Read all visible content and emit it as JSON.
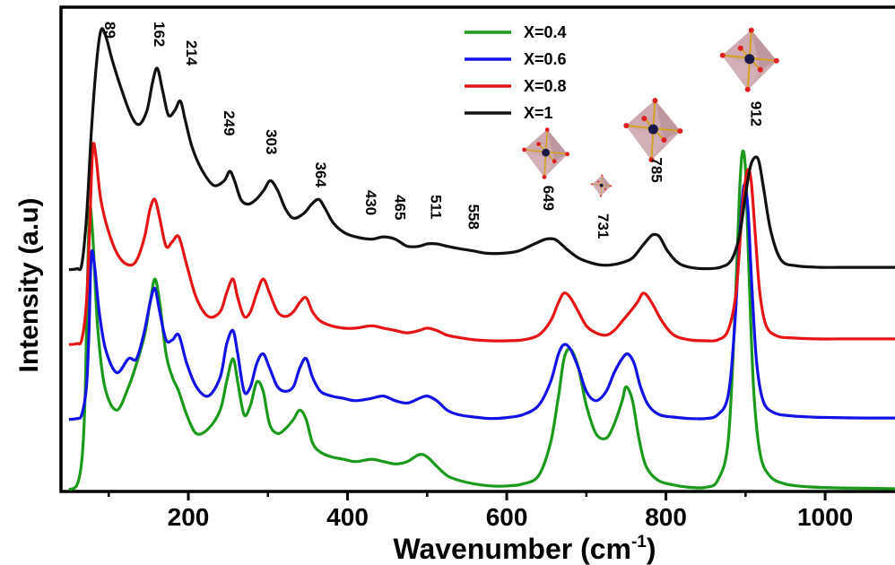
{
  "chart_data": {
    "type": "line",
    "title": "",
    "xlabel": "Wavenumber (cm",
    "xlabel_sup": "-1",
    "xlabel_end": ")",
    "ylabel": "Intensity (a.u)",
    "xlim": [
      40,
      1090
    ],
    "ylim": [
      0,
      100
    ],
    "x_ticks": [
      200,
      400,
      600,
      800,
      1000
    ],
    "x_tick_labels": [
      "200",
      "400",
      "600",
      "800",
      "1000"
    ],
    "y_ticks_shown": false,
    "grid": false,
    "legend_position": "top-center",
    "series": [
      {
        "name": "X=0.4",
        "color": "#1a9a1a",
        "x": [
          50,
          60,
          66,
          70,
          73,
          76,
          80,
          86,
          95,
          110,
          125,
          135,
          145,
          152,
          158,
          164,
          172,
          180,
          188,
          198,
          210,
          225,
          240,
          248,
          256,
          262,
          270,
          278,
          286,
          294,
          302,
          312,
          322,
          332,
          340,
          348,
          356,
          366,
          380,
          395,
          410,
          430,
          445,
          460,
          475,
          490,
          500,
          512,
          525,
          540,
          560,
          580,
          600,
          620,
          640,
          655,
          665,
          672,
          680,
          690,
          700,
          712,
          725,
          735,
          745,
          750,
          758,
          766,
          775,
          790,
          810,
          830,
          850,
          865,
          878,
          886,
          892,
          896,
          900,
          904,
          910,
          918,
          930,
          950,
          980,
          1010,
          1050,
          1090
        ],
        "y": [
          0,
          1,
          6,
          18,
          42,
          60,
          54,
          35,
          22,
          17,
          22,
          27,
          33,
          40,
          45,
          40,
          29,
          24,
          21,
          16,
          12,
          13,
          17,
          23,
          28,
          23,
          16,
          18,
          23,
          21,
          14,
          12,
          13,
          15,
          17,
          15,
          10,
          8,
          7,
          6.5,
          6,
          6.5,
          6,
          5.5,
          6,
          7.5,
          7,
          5,
          3,
          2,
          1.2,
          0.8,
          0.8,
          1.2,
          3,
          10,
          20,
          28,
          30,
          26,
          18,
          12,
          11,
          14,
          19,
          22,
          19,
          11,
          5,
          2,
          1,
          0.5,
          0.5,
          2,
          10,
          35,
          62,
          72,
          68,
          48,
          22,
          8,
          3,
          1.2,
          0.6,
          0.4,
          0.3,
          0.2
        ]
      },
      {
        "name": "X=0.6",
        "color": "#1212e6",
        "x": [
          50,
          60,
          66,
          72,
          75,
          78,
          82,
          88,
          96,
          110,
          125,
          135,
          145,
          152,
          158,
          164,
          172,
          180,
          188,
          198,
          210,
          225,
          240,
          248,
          256,
          262,
          270,
          278,
          286,
          294,
          302,
          312,
          322,
          332,
          340,
          348,
          356,
          366,
          380,
          395,
          410,
          430,
          445,
          460,
          475,
          490,
          500,
          512,
          525,
          540,
          560,
          580,
          600,
          620,
          640,
          655,
          665,
          672,
          680,
          690,
          700,
          712,
          725,
          735,
          745,
          752,
          760,
          768,
          778,
          792,
          810,
          830,
          850,
          865,
          878,
          886,
          893,
          898,
          903,
          908,
          914,
          922,
          935,
          955,
          985,
          1010,
          1050,
          1090
        ],
        "y": [
          15,
          15.2,
          16,
          22,
          33,
          50,
          48,
          38,
          30,
          25,
          28,
          28,
          34,
          40,
          43,
          38,
          32,
          32,
          33,
          27,
          22,
          20,
          24,
          31,
          34,
          29,
          21,
          22,
          27,
          29,
          26,
          22,
          21,
          22,
          26,
          28,
          24,
          21,
          20,
          19.5,
          19,
          19.5,
          20,
          19,
          18.5,
          19.5,
          20,
          19,
          17,
          16,
          15.5,
          15.2,
          15.4,
          16,
          18,
          23,
          29,
          31,
          30,
          26,
          21,
          19,
          21,
          25,
          28,
          29,
          27,
          22,
          18,
          16,
          15.5,
          15.2,
          15.2,
          16,
          20,
          34,
          55,
          65,
          60,
          43,
          27,
          19,
          16.5,
          15.8,
          15.5,
          15.4,
          15.3,
          15.3
        ]
      },
      {
        "name": "X=0.8",
        "color": "#e61414",
        "x": [
          50,
          60,
          66,
          72,
          76,
          80,
          84,
          90,
          100,
          112,
          125,
          135,
          145,
          152,
          158,
          164,
          172,
          180,
          188,
          198,
          210,
          225,
          240,
          248,
          256,
          262,
          270,
          278,
          286,
          294,
          302,
          312,
          322,
          332,
          340,
          348,
          356,
          366,
          380,
          395,
          410,
          430,
          445,
          460,
          475,
          490,
          500,
          512,
          525,
          540,
          560,
          580,
          600,
          620,
          640,
          655,
          665,
          672,
          680,
          690,
          700,
          712,
          725,
          735,
          745,
          755,
          764,
          772,
          782,
          795,
          810,
          830,
          850,
          865,
          878,
          888,
          896,
          902,
          907,
          912,
          918,
          926,
          940,
          960,
          990,
          1020,
          1050,
          1090
        ],
        "y": [
          31,
          31.2,
          32,
          40,
          56,
          73,
          71,
          62,
          55,
          50,
          48,
          49,
          54,
          60,
          62,
          58,
          52,
          53,
          54,
          48,
          41,
          37,
          38,
          42,
          45,
          41,
          37,
          38,
          42,
          45,
          42,
          38,
          37,
          38,
          40,
          41,
          38,
          36,
          35,
          34.5,
          34.5,
          35,
          34.5,
          34,
          33.5,
          34,
          34.5,
          34,
          33,
          32.5,
          32,
          31.8,
          31.8,
          32,
          33,
          36,
          40,
          42,
          41,
          38,
          35,
          33.5,
          33,
          34,
          36,
          38,
          40,
          42,
          40,
          36,
          33,
          32,
          31.8,
          32,
          34,
          42,
          60,
          68,
          66,
          55,
          42,
          35,
          32.8,
          32.4,
          32.2,
          32.2,
          32.2,
          32.2
        ]
      },
      {
        "name": "X=1",
        "color": "#111111",
        "x": [
          50,
          60,
          66,
          72,
          78,
          84,
          90,
          96,
          104,
          115,
          128,
          138,
          148,
          155,
          161,
          168,
          175,
          183,
          190,
          196,
          205,
          218,
          232,
          245,
          252,
          258,
          266,
          275,
          285,
          295,
          303,
          312,
          322,
          332,
          345,
          355,
          364,
          372,
          382,
          395,
          410,
          430,
          445,
          460,
          475,
          490,
          500,
          512,
          525,
          540,
          558,
          575,
          595,
          615,
          635,
          649,
          660,
          668,
          678,
          690,
          705,
          718,
          731,
          745,
          758,
          770,
          780,
          785,
          792,
          802,
          815,
          830,
          850,
          868,
          882,
          892,
          900,
          906,
          912,
          917,
          923,
          932,
          945,
          965,
          995,
          1025,
          1055,
          1090
        ],
        "y": [
          47,
          47.2,
          48,
          58,
          76,
          90,
          98,
          97,
          92,
          86,
          80,
          78,
          81,
          87,
          90,
          85,
          80,
          81,
          83,
          79,
          73,
          68,
          65,
          66,
          68,
          66,
          62,
          61,
          62,
          64,
          66,
          64,
          60,
          58,
          59,
          61,
          62,
          60,
          57,
          55,
          54,
          53.5,
          54,
          53.5,
          52,
          52,
          52.5,
          52.5,
          52,
          51.5,
          51,
          50.5,
          50.5,
          51,
          52.5,
          53.5,
          53.5,
          52.5,
          51,
          49.5,
          48.5,
          48,
          48,
          48.5,
          49.5,
          52,
          54,
          54.5,
          54,
          51,
          48.5,
          47.5,
          47.2,
          47.5,
          49,
          54,
          63,
          69,
          71,
          70,
          64,
          55,
          49,
          47.8,
          47.5,
          47.5,
          47.5,
          47.5
        ]
      }
    ],
    "annotations": [
      {
        "text": "89",
        "x": 100,
        "y": 100,
        "rotate": 90
      },
      {
        "text": "162",
        "x": 162,
        "y": 100,
        "rotate": 90
      },
      {
        "text": "214",
        "x": 203,
        "y": 96,
        "rotate": 90
      },
      {
        "text": "249",
        "x": 250,
        "y": 81,
        "rotate": 90
      },
      {
        "text": "303",
        "x": 303,
        "y": 77,
        "rotate": 90
      },
      {
        "text": "364",
        "x": 365,
        "y": 70,
        "rotate": 90
      },
      {
        "text": "430",
        "x": 428,
        "y": 64,
        "rotate": 90
      },
      {
        "text": "465",
        "x": 465,
        "y": 63,
        "rotate": 90
      },
      {
        "text": "511",
        "x": 510,
        "y": 63,
        "rotate": 90
      },
      {
        "text": "558",
        "x": 557,
        "y": 61,
        "rotate": 90
      },
      {
        "text": "649",
        "x": 651,
        "y": 65,
        "rotate": 90
      },
      {
        "text": "731",
        "x": 720,
        "y": 59,
        "rotate": 90
      },
      {
        "text": "785",
        "x": 787,
        "y": 71,
        "rotate": 90
      },
      {
        "text": "912",
        "x": 912,
        "y": 83,
        "rotate": 90
      }
    ]
  },
  "octahedra": [
    {
      "label": "octahedron-near-649",
      "wavenumber": 649,
      "level": 72,
      "scale": 0.8
    },
    {
      "label": "octahedron-near-731",
      "wavenumber": 719,
      "level": 65,
      "scale": 0.35
    },
    {
      "label": "octahedron-near-785",
      "wavenumber": 784,
      "level": 77,
      "scale": 1.0
    },
    {
      "label": "octahedron-near-912",
      "wavenumber": 905,
      "level": 92,
      "scale": 1.0
    }
  ],
  "colors": {
    "octahedron_fill": "#c8a0a8",
    "octahedron_edge": "#d4a020",
    "octahedron_center": "#1a1a4a",
    "octahedron_vertex": "#e02020"
  }
}
